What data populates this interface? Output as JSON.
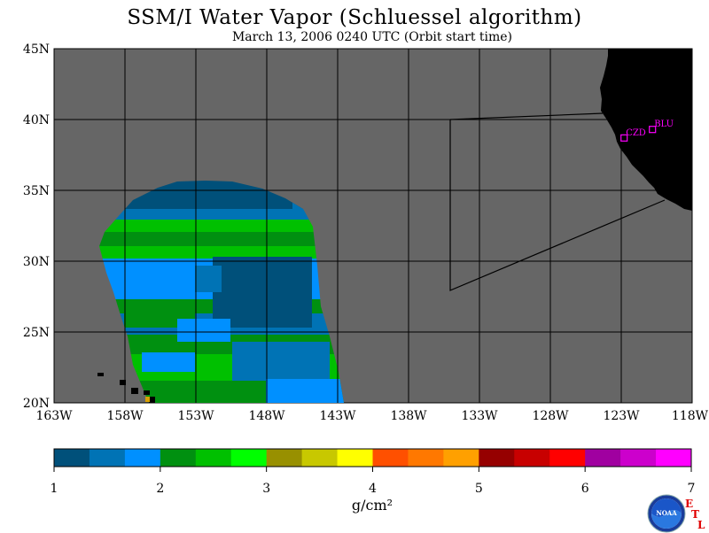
{
  "title": "SSM/I Water Vapor (Schluessel algorithm)",
  "subtitle": "March 13, 2006  0240 UTC  (Orbit start time)",
  "map": {
    "lon_labels": [
      "163W",
      "158W",
      "153W",
      "148W",
      "143W",
      "138W",
      "133W",
      "128W",
      "123W",
      "118W"
    ],
    "lat_labels": [
      "45N",
      "40N",
      "35N",
      "30N",
      "25N",
      "20N"
    ],
    "lon_range": [
      -163,
      -118
    ],
    "lat_range": [
      20,
      45
    ],
    "stations": [
      {
        "id": "CZD",
        "lon": -122.8,
        "lat": 38.7
      },
      {
        "id": "BLU",
        "lon": -120.8,
        "lat": 39.3
      }
    ],
    "colors": {
      "no_data": "#666666",
      "land": "#000000",
      "station": "#ff00ff"
    }
  },
  "colorbar": {
    "ticks": [
      "1",
      "2",
      "3",
      "4",
      "5",
      "6",
      "7"
    ],
    "range": [
      1,
      7
    ],
    "units": "g/cm²",
    "colors": [
      "#00507a",
      "#0073b5",
      "#0090ff",
      "#009010",
      "#00c000",
      "#00ff00",
      "#989000",
      "#c8c800",
      "#ffff00",
      "#ff5000",
      "#ff7800",
      "#ffa000",
      "#960000",
      "#c80000",
      "#ff0000",
      "#a000a0",
      "#cc00cc",
      "#ff00ff"
    ]
  },
  "logo": {
    "text": "NOAA",
    "etl_letters": [
      "E",
      "T",
      "L"
    ]
  }
}
